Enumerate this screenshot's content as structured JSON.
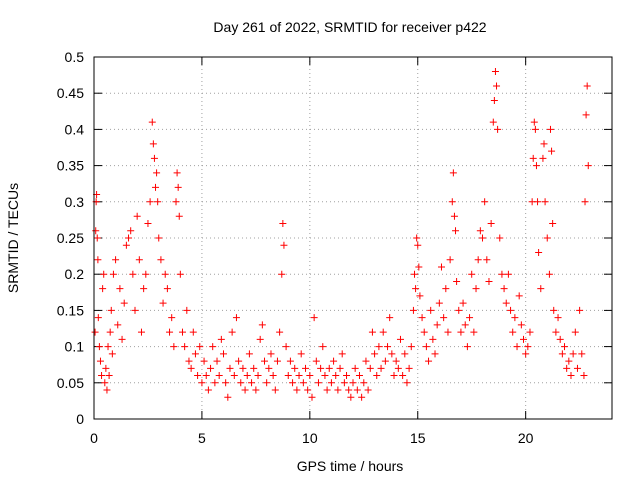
{
  "chart_data": {
    "type": "scatter",
    "title": "Day 261 of 2022, SRMTID for receiver p422",
    "xlabel": "GPS time / hours",
    "ylabel": "SRMTID / TECUs",
    "xlim": [
      0,
      24
    ],
    "ylim": [
      0,
      0.5
    ],
    "x_ticks": [
      0,
      5,
      10,
      15,
      20
    ],
    "x_tick_labels": [
      "0",
      "5",
      "10",
      "15",
      "20"
    ],
    "y_ticks": [
      0,
      0.05,
      0.1,
      0.15,
      0.2,
      0.25,
      0.3,
      0.35,
      0.4,
      0.45,
      0.5
    ],
    "y_tick_labels": [
      "0",
      "0.05",
      "0.1",
      "0.15",
      "0.2",
      "0.25",
      "0.3",
      "0.35",
      "0.4",
      "0.45",
      "0.5"
    ],
    "grid": true,
    "marker": "+",
    "marker_color": "#ff0000",
    "series": [
      {
        "name": "SRMTID",
        "points": [
          [
            0.05,
            0.12
          ],
          [
            0.08,
            0.26
          ],
          [
            0.1,
            0.3
          ],
          [
            0.12,
            0.31
          ],
          [
            0.15,
            0.25
          ],
          [
            0.18,
            0.22
          ],
          [
            0.2,
            0.14
          ],
          [
            0.25,
            0.1
          ],
          [
            0.3,
            0.08
          ],
          [
            0.35,
            0.06
          ],
          [
            0.4,
            0.18
          ],
          [
            0.45,
            0.2
          ],
          [
            0.5,
            0.05
          ],
          [
            0.55,
            0.07
          ],
          [
            0.6,
            0.04
          ],
          [
            0.65,
            0.1
          ],
          [
            0.7,
            0.06
          ],
          [
            0.75,
            0.12
          ],
          [
            0.8,
            0.15
          ],
          [
            0.85,
            0.09
          ],
          [
            0.9,
            0.2
          ],
          [
            1.0,
            0.22
          ],
          [
            1.1,
            0.13
          ],
          [
            1.2,
            0.18
          ],
          [
            1.3,
            0.11
          ],
          [
            1.4,
            0.16
          ],
          [
            1.5,
            0.24
          ],
          [
            1.6,
            0.25
          ],
          [
            1.7,
            0.26
          ],
          [
            1.8,
            0.2
          ],
          [
            1.9,
            0.15
          ],
          [
            2.0,
            0.28
          ],
          [
            2.1,
            0.22
          ],
          [
            2.2,
            0.12
          ],
          [
            2.3,
            0.18
          ],
          [
            2.4,
            0.2
          ],
          [
            2.5,
            0.27
          ],
          [
            2.6,
            0.3
          ],
          [
            2.7,
            0.41
          ],
          [
            2.75,
            0.38
          ],
          [
            2.8,
            0.36
          ],
          [
            2.85,
            0.32
          ],
          [
            2.9,
            0.34
          ],
          [
            2.95,
            0.3
          ],
          [
            3.0,
            0.25
          ],
          [
            3.1,
            0.22
          ],
          [
            3.2,
            0.16
          ],
          [
            3.3,
            0.2
          ],
          [
            3.4,
            0.18
          ],
          [
            3.5,
            0.12
          ],
          [
            3.6,
            0.14
          ],
          [
            3.7,
            0.1
          ],
          [
            3.8,
            0.3
          ],
          [
            3.85,
            0.34
          ],
          [
            3.9,
            0.32
          ],
          [
            3.95,
            0.28
          ],
          [
            4.0,
            0.2
          ],
          [
            4.1,
            0.12
          ],
          [
            4.2,
            0.1
          ],
          [
            4.3,
            0.15
          ],
          [
            4.4,
            0.08
          ],
          [
            4.5,
            0.07
          ],
          [
            4.6,
            0.12
          ],
          [
            4.7,
            0.09
          ],
          [
            4.8,
            0.06
          ],
          [
            4.9,
            0.1
          ],
          [
            5.0,
            0.05
          ],
          [
            5.1,
            0.08
          ],
          [
            5.2,
            0.06
          ],
          [
            5.3,
            0.04
          ],
          [
            5.4,
            0.07
          ],
          [
            5.5,
            0.1
          ],
          [
            5.6,
            0.05
          ],
          [
            5.7,
            0.08
          ],
          [
            5.8,
            0.06
          ],
          [
            5.9,
            0.11
          ],
          [
            6.0,
            0.09
          ],
          [
            6.1,
            0.05
          ],
          [
            6.2,
            0.03
          ],
          [
            6.3,
            0.07
          ],
          [
            6.4,
            0.12
          ],
          [
            6.5,
            0.06
          ],
          [
            6.6,
            0.14
          ],
          [
            6.7,
            0.08
          ],
          [
            6.8,
            0.05
          ],
          [
            6.9,
            0.07
          ],
          [
            7.0,
            0.04
          ],
          [
            7.1,
            0.06
          ],
          [
            7.2,
            0.09
          ],
          [
            7.3,
            0.05
          ],
          [
            7.4,
            0.07
          ],
          [
            7.5,
            0.04
          ],
          [
            7.6,
            0.06
          ],
          [
            7.7,
            0.11
          ],
          [
            7.8,
            0.13
          ],
          [
            7.9,
            0.08
          ],
          [
            8.0,
            0.05
          ],
          [
            8.1,
            0.07
          ],
          [
            8.2,
            0.09
          ],
          [
            8.3,
            0.06
          ],
          [
            8.4,
            0.04
          ],
          [
            8.5,
            0.08
          ],
          [
            8.6,
            0.12
          ],
          [
            8.7,
            0.2
          ],
          [
            8.75,
            0.27
          ],
          [
            8.8,
            0.24
          ],
          [
            8.9,
            0.1
          ],
          [
            9.0,
            0.06
          ],
          [
            9.1,
            0.08
          ],
          [
            9.2,
            0.05
          ],
          [
            9.3,
            0.07
          ],
          [
            9.4,
            0.04
          ],
          [
            9.5,
            0.06
          ],
          [
            9.6,
            0.09
          ],
          [
            9.7,
            0.05
          ],
          [
            9.8,
            0.07
          ],
          [
            9.9,
            0.04
          ],
          [
            10.0,
            0.06
          ],
          [
            10.1,
            0.03
          ],
          [
            10.2,
            0.14
          ],
          [
            10.3,
            0.08
          ],
          [
            10.4,
            0.05
          ],
          [
            10.5,
            0.07
          ],
          [
            10.6,
            0.1
          ],
          [
            10.7,
            0.06
          ],
          [
            10.8,
            0.04
          ],
          [
            10.9,
            0.07
          ],
          [
            11.0,
            0.05
          ],
          [
            11.1,
            0.08
          ],
          [
            11.2,
            0.06
          ],
          [
            11.3,
            0.04
          ],
          [
            11.4,
            0.07
          ],
          [
            11.5,
            0.09
          ],
          [
            11.6,
            0.05
          ],
          [
            11.7,
            0.06
          ],
          [
            11.8,
            0.04
          ],
          [
            11.9,
            0.03
          ],
          [
            12.0,
            0.05
          ],
          [
            12.1,
            0.07
          ],
          [
            12.2,
            0.04
          ],
          [
            12.3,
            0.06
          ],
          [
            12.4,
            0.03
          ],
          [
            12.5,
            0.05
          ],
          [
            12.6,
            0.08
          ],
          [
            12.7,
            0.04
          ],
          [
            12.8,
            0.07
          ],
          [
            12.9,
            0.12
          ],
          [
            13.0,
            0.09
          ],
          [
            13.1,
            0.06
          ],
          [
            13.2,
            0.1
          ],
          [
            13.3,
            0.07
          ],
          [
            13.4,
            0.12
          ],
          [
            13.5,
            0.08
          ],
          [
            13.6,
            0.1
          ],
          [
            13.7,
            0.14
          ],
          [
            13.8,
            0.09
          ],
          [
            13.9,
            0.06
          ],
          [
            14.0,
            0.08
          ],
          [
            14.1,
            0.07
          ],
          [
            14.2,
            0.11
          ],
          [
            14.3,
            0.06
          ],
          [
            14.4,
            0.09
          ],
          [
            14.5,
            0.05
          ],
          [
            14.6,
            0.07
          ],
          [
            14.7,
            0.1
          ],
          [
            14.8,
            0.15
          ],
          [
            14.85,
            0.2
          ],
          [
            14.9,
            0.18
          ],
          [
            14.95,
            0.25
          ],
          [
            15.0,
            0.24
          ],
          [
            15.05,
            0.21
          ],
          [
            15.1,
            0.17
          ],
          [
            15.2,
            0.14
          ],
          [
            15.3,
            0.12
          ],
          [
            15.4,
            0.1
          ],
          [
            15.5,
            0.08
          ],
          [
            15.6,
            0.15
          ],
          [
            15.7,
            0.11
          ],
          [
            15.8,
            0.09
          ],
          [
            15.9,
            0.13
          ],
          [
            16.0,
            0.16
          ],
          [
            16.1,
            0.21
          ],
          [
            16.2,
            0.14
          ],
          [
            16.3,
            0.18
          ],
          [
            16.4,
            0.12
          ],
          [
            16.5,
            0.22
          ],
          [
            16.6,
            0.3
          ],
          [
            16.65,
            0.34
          ],
          [
            16.7,
            0.28
          ],
          [
            16.75,
            0.26
          ],
          [
            16.8,
            0.19
          ],
          [
            16.9,
            0.15
          ],
          [
            17.0,
            0.12
          ],
          [
            17.1,
            0.16
          ],
          [
            17.2,
            0.13
          ],
          [
            17.3,
            0.1
          ],
          [
            17.4,
            0.14
          ],
          [
            17.5,
            0.2
          ],
          [
            17.6,
            0.12
          ],
          [
            17.7,
            0.18
          ],
          [
            17.8,
            0.22
          ],
          [
            17.9,
            0.26
          ],
          [
            18.0,
            0.25
          ],
          [
            18.1,
            0.3
          ],
          [
            18.2,
            0.22
          ],
          [
            18.3,
            0.19
          ],
          [
            18.4,
            0.27
          ],
          [
            18.5,
            0.41
          ],
          [
            18.55,
            0.44
          ],
          [
            18.6,
            0.48
          ],
          [
            18.65,
            0.46
          ],
          [
            18.7,
            0.4
          ],
          [
            18.8,
            0.25
          ],
          [
            18.9,
            0.2
          ],
          [
            19.0,
            0.18
          ],
          [
            19.1,
            0.16
          ],
          [
            19.2,
            0.2
          ],
          [
            19.3,
            0.15
          ],
          [
            19.4,
            0.12
          ],
          [
            19.5,
            0.14
          ],
          [
            19.6,
            0.1
          ],
          [
            19.7,
            0.17
          ],
          [
            19.8,
            0.13
          ],
          [
            19.9,
            0.11
          ],
          [
            20.0,
            0.09
          ],
          [
            20.1,
            0.1
          ],
          [
            20.2,
            0.12
          ],
          [
            20.3,
            0.3
          ],
          [
            20.35,
            0.36
          ],
          [
            20.4,
            0.41
          ],
          [
            20.45,
            0.4
          ],
          [
            20.5,
            0.35
          ],
          [
            20.55,
            0.3
          ],
          [
            20.6,
            0.23
          ],
          [
            20.7,
            0.18
          ],
          [
            20.8,
            0.36
          ],
          [
            20.85,
            0.38
          ],
          [
            20.9,
            0.3
          ],
          [
            21.0,
            0.25
          ],
          [
            21.1,
            0.2
          ],
          [
            21.15,
            0.4
          ],
          [
            21.2,
            0.37
          ],
          [
            21.25,
            0.27
          ],
          [
            21.3,
            0.15
          ],
          [
            21.4,
            0.12
          ],
          [
            21.5,
            0.14
          ],
          [
            21.6,
            0.11
          ],
          [
            21.7,
            0.09
          ],
          [
            21.8,
            0.1
          ],
          [
            21.9,
            0.07
          ],
          [
            22.0,
            0.08
          ],
          [
            22.1,
            0.06
          ],
          [
            22.2,
            0.09
          ],
          [
            22.3,
            0.12
          ],
          [
            22.4,
            0.07
          ],
          [
            22.5,
            0.15
          ],
          [
            22.6,
            0.09
          ],
          [
            22.7,
            0.06
          ],
          [
            22.75,
            0.3
          ],
          [
            22.8,
            0.42
          ],
          [
            22.85,
            0.46
          ],
          [
            22.9,
            0.35
          ]
        ]
      }
    ]
  }
}
